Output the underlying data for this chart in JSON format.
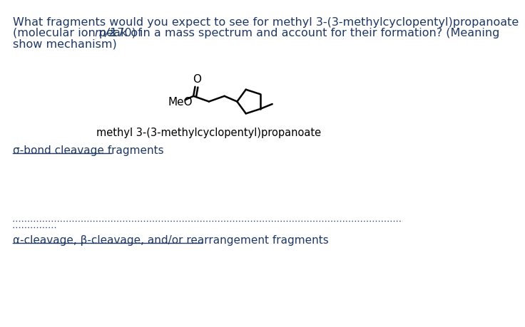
{
  "title_line1": "What fragments would you expect to see for methyl 3-(3-methylcyclopentyl)propanoate",
  "title_line2": "(molecular ion peak of ",
  "title_line2_italic": "m/z",
  "title_line2_end": " 170) in a mass spectrum and account for their formation? (Meaning",
  "title_line3": "show mechanism)",
  "compound_label": "methyl 3-(3-methylcyclopentyl)propanoate",
  "sigma_bond_label": "σ-bond cleavage fragments",
  "alpha_beta_label": "α-cleavage, β-cleavage, and/or rearrangement fragments",
  "meo_label": "MeO",
  "oxygen_label": "O",
  "text_color": "#1f3864",
  "bond_color": "#000000",
  "background_color": "#ffffff",
  "title_fontsize": 11.5,
  "label_fontsize": 11.0,
  "compound_name_fontsize": 10.5,
  "structure_fontsize": 11.0
}
